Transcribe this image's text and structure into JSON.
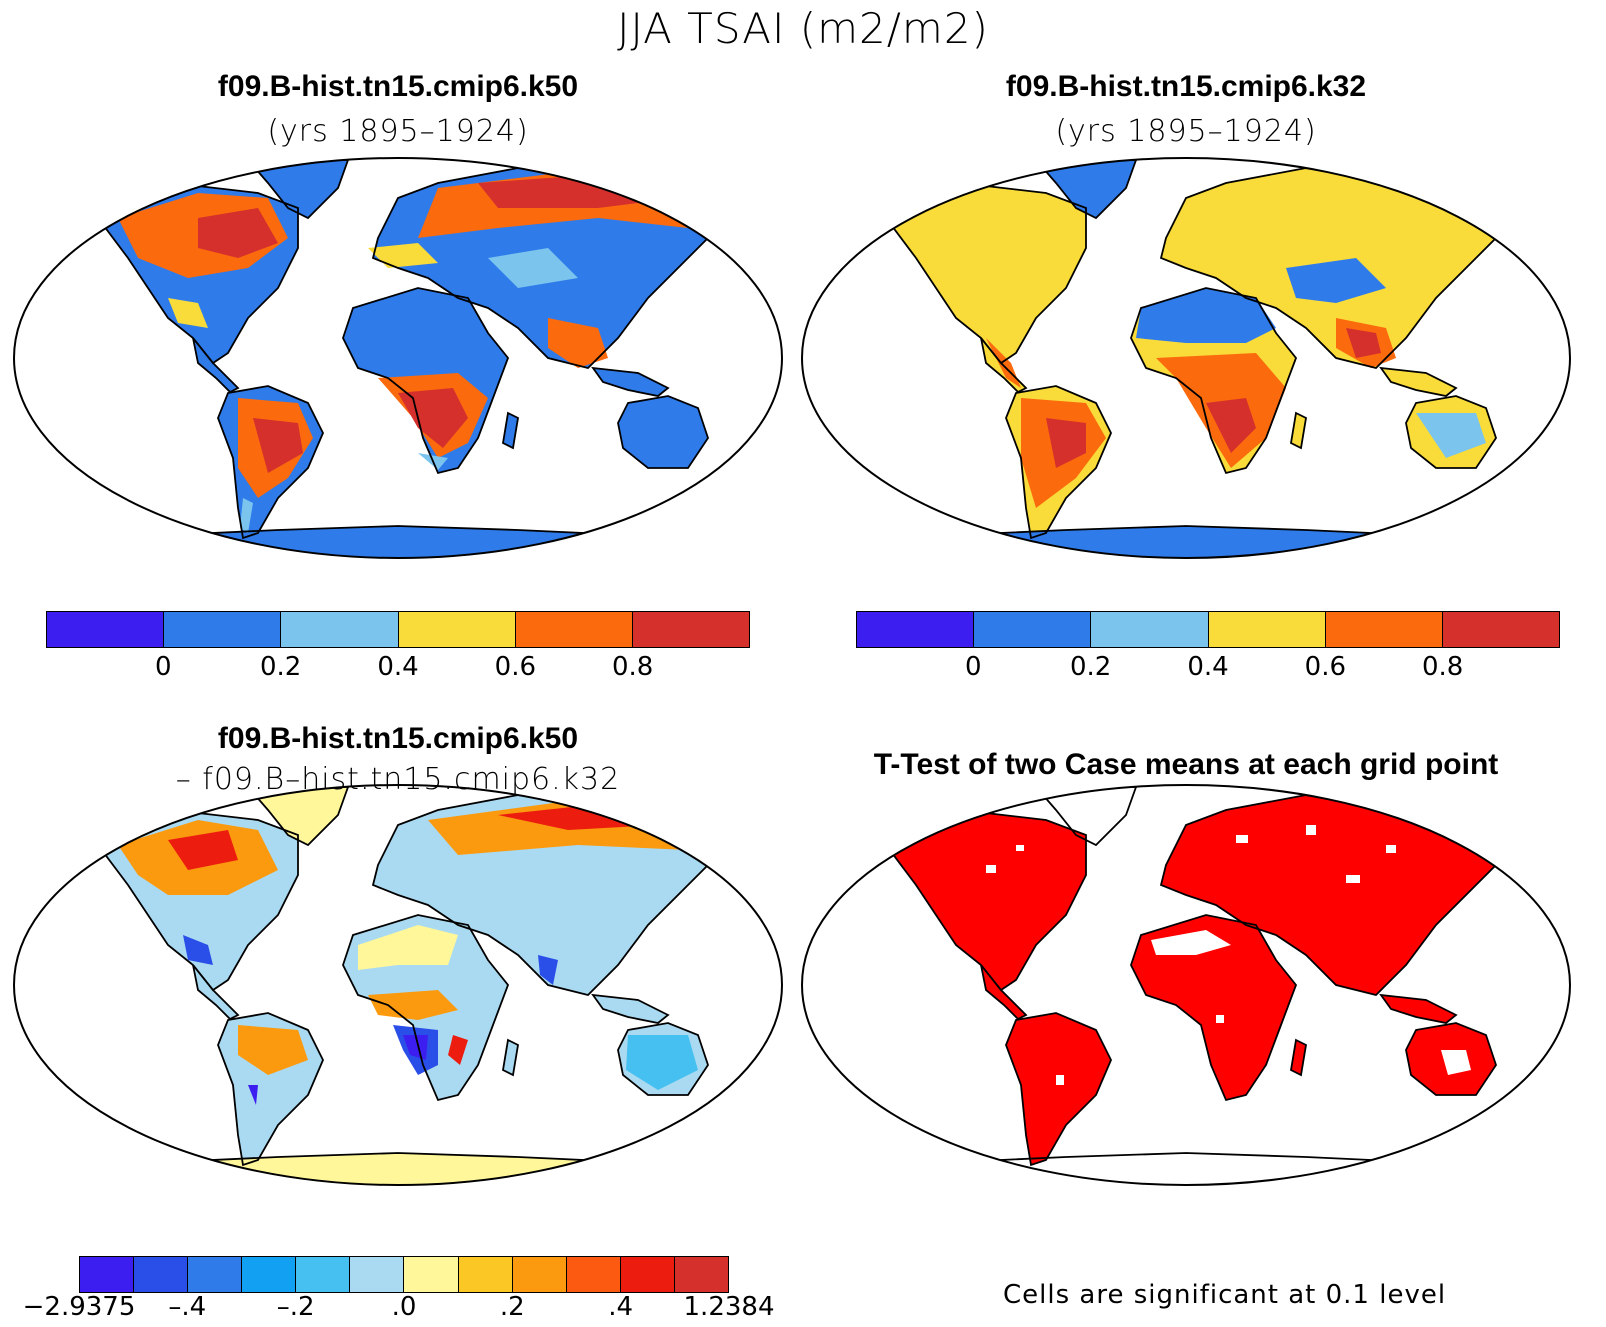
{
  "figure": {
    "main_title": "JJA TSAI (m2/m2)"
  },
  "panels": [
    {
      "id": "k50",
      "title": "f09.B-hist.tn15.cmip6.k50",
      "subtitle": "(yrs 1895–1924)",
      "colorbar": {
        "colors": [
          "#3d1ef0",
          "#2f7bea",
          "#7ac4ee",
          "#f9dc3a",
          "#fb6a0d",
          "#d5302c"
        ],
        "ticks": [
          "0",
          "0.2",
          "0.4",
          "0.6",
          "0.8"
        ]
      }
    },
    {
      "id": "k32",
      "title": "f09.B-hist.tn15.cmip6.k32",
      "subtitle": "(yrs 1895–1924)",
      "colorbar": {
        "colors": [
          "#3d1ef0",
          "#2f7bea",
          "#7ac4ee",
          "#f9dc3a",
          "#fb6a0d",
          "#d5302c"
        ],
        "ticks": [
          "0",
          "0.2",
          "0.4",
          "0.6",
          "0.8"
        ]
      }
    },
    {
      "id": "diff",
      "title": "f09.B-hist.tn15.cmip6.k50",
      "subtitle": "– f09.B–hist.tn15.cmip6.k32",
      "colorbar": {
        "colors": [
          "#3d1ef0",
          "#2a4fe8",
          "#2f7bea",
          "#12a0f2",
          "#45c0f0",
          "#aadaf1",
          "#fff79a",
          "#fbc724",
          "#fb9a0e",
          "#fb5a10",
          "#ec1d0f",
          "#d5302c"
        ],
        "ticks": [
          "−2.9375",
          "–.4",
          "–.2",
          ".0",
          ".2",
          ".4",
          "1.2384"
        ]
      }
    },
    {
      "id": "ttest",
      "title": "T-Test of two Case means at each grid point",
      "note": "Cells are significant at 0.1 level",
      "significant_color": "#ff0000"
    }
  ]
}
